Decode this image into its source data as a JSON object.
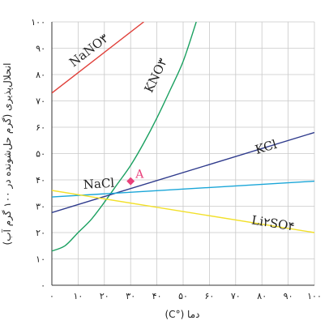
{
  "chart_data": {
    "type": "line",
    "xlabel": "دما (°C)",
    "ylabel": "انحلال‌پذیری (گرم حل‌شونده در ۱۰۰ گرم آب)",
    "xlim": [
      0,
      100
    ],
    "ylim": [
      0,
      100
    ],
    "x_ticks": [
      {
        "value": 0,
        "label": "۰"
      },
      {
        "value": 10,
        "label": "۱۰"
      },
      {
        "value": 20,
        "label": "۲۰"
      },
      {
        "value": 30,
        "label": "۳۰"
      },
      {
        "value": 40,
        "label": "۴۰"
      },
      {
        "value": 50,
        "label": "۵۰"
      },
      {
        "value": 60,
        "label": "۶۰"
      },
      {
        "value": 70,
        "label": "۷۰"
      },
      {
        "value": 80,
        "label": "۸۰"
      },
      {
        "value": 90,
        "label": "۹۰"
      },
      {
        "value": 100,
        "label": "۱۰۰"
      }
    ],
    "y_ticks": [
      {
        "value": 0,
        "label": "۰"
      },
      {
        "value": 10,
        "label": "۱۰"
      },
      {
        "value": 20,
        "label": "۲۰"
      },
      {
        "value": 30,
        "label": "۳۰"
      },
      {
        "value": 40,
        "label": "۴۰"
      },
      {
        "value": 50,
        "label": "۵۰"
      },
      {
        "value": 60,
        "label": "۶۰"
      },
      {
        "value": 70,
        "label": "۷۰"
      },
      {
        "value": 80,
        "label": "۸۰"
      },
      {
        "value": 90,
        "label": "۹۰"
      },
      {
        "value": 100,
        "label": "۱۰۰"
      }
    ],
    "grid": true,
    "series": [
      {
        "name": "NaNO۳",
        "color": "#e0403a",
        "points": [
          [
            0,
            73
          ],
          [
            35,
            100
          ]
        ],
        "label_anchor": [
          15,
          88
        ]
      },
      {
        "name": "KNO۳",
        "color": "#1aa060",
        "points": [
          [
            0,
            13
          ],
          [
            5,
            15
          ],
          [
            10,
            20
          ],
          [
            15,
            25
          ],
          [
            20,
            31.5
          ],
          [
            25,
            38.5
          ],
          [
            30,
            45.5
          ],
          [
            35,
            54
          ],
          [
            40,
            63.5
          ],
          [
            45,
            74
          ],
          [
            50,
            85
          ],
          [
            55,
            100
          ]
        ],
        "label_anchor": [
          41,
          79
        ]
      },
      {
        "name": "KCl",
        "color": "#2e3a8c",
        "points": [
          [
            0,
            27.6
          ],
          [
            100,
            58
          ]
        ],
        "label_anchor": [
          82,
          51
        ]
      },
      {
        "name": "NaCl",
        "color": "#1aa6d8",
        "points": [
          [
            0,
            33.5
          ],
          [
            100,
            39.5
          ]
        ],
        "label_anchor": [
          18,
          37
        ]
      },
      {
        "name": "Li۲SO۴",
        "color": "#f2e02a",
        "points": [
          [
            0,
            36
          ],
          [
            100,
            20
          ]
        ],
        "label_anchor": [
          84,
          22
        ]
      }
    ],
    "annotations": [
      {
        "label": "A",
        "x": 30,
        "y": 39.5,
        "color": "#e8407a"
      }
    ]
  }
}
